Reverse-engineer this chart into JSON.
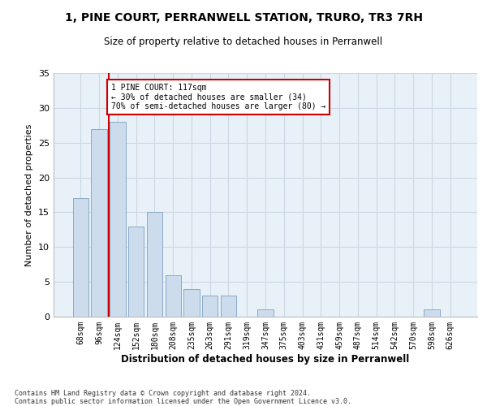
{
  "title": "1, PINE COURT, PERRANWELL STATION, TRURO, TR3 7RH",
  "subtitle": "Size of property relative to detached houses in Perranwell",
  "xlabel": "Distribution of detached houses by size in Perranwell",
  "ylabel": "Number of detached properties",
  "bar_labels": [
    "68sqm",
    "96sqm",
    "124sqm",
    "152sqm",
    "180sqm",
    "208sqm",
    "235sqm",
    "263sqm",
    "291sqm",
    "319sqm",
    "347sqm",
    "375sqm",
    "403sqm",
    "431sqm",
    "459sqm",
    "487sqm",
    "514sqm",
    "542sqm",
    "570sqm",
    "598sqm",
    "626sqm"
  ],
  "bar_values": [
    17,
    27,
    28,
    13,
    15,
    6,
    4,
    3,
    3,
    0,
    1,
    0,
    0,
    0,
    0,
    0,
    0,
    0,
    0,
    1,
    0
  ],
  "bar_color": "#ccdcec",
  "bar_edge_color": "#8aaac8",
  "grid_color": "#ccd8e4",
  "background_color": "#e8f0f8",
  "annotation_text": "1 PINE COURT: 117sqm\n← 30% of detached houses are smaller (34)\n70% of semi-detached houses are larger (80) →",
  "vline_x": 1.5,
  "vline_color": "#cc0000",
  "annotation_box_color": "#cc0000",
  "ylim": [
    0,
    35
  ],
  "yticks": [
    0,
    5,
    10,
    15,
    20,
    25,
    30,
    35
  ],
  "footer_line1": "Contains HM Land Registry data © Crown copyright and database right 2024.",
  "footer_line2": "Contains public sector information licensed under the Open Government Licence v3.0."
}
